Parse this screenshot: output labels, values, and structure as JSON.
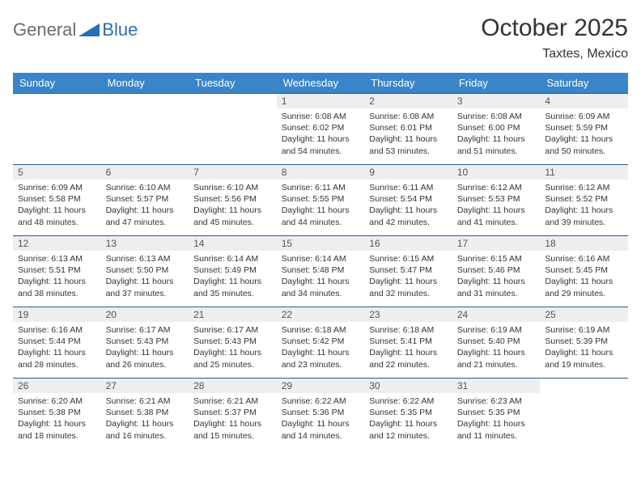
{
  "brand": {
    "general": "General",
    "blue": "Blue"
  },
  "title": "October 2025",
  "location": "Taxtes, Mexico",
  "colors": {
    "header_bg": "#3a85c9",
    "header_text": "#ffffff",
    "cell_border": "#2a5d8a",
    "daynum_bg": "#eceef0",
    "text": "#333333",
    "logo_blue": "#2a6db8",
    "logo_grey": "#6b6b6b"
  },
  "typography": {
    "title_fontsize": 30,
    "location_fontsize": 16,
    "weekday_fontsize": 13,
    "daynum_fontsize": 12,
    "body_fontsize": 10.5
  },
  "weekdays": [
    "Sunday",
    "Monday",
    "Tuesday",
    "Wednesday",
    "Thursday",
    "Friday",
    "Saturday"
  ],
  "weeks": [
    [
      {
        "n": "",
        "sr": "",
        "ss": "",
        "dl": ""
      },
      {
        "n": "",
        "sr": "",
        "ss": "",
        "dl": ""
      },
      {
        "n": "",
        "sr": "",
        "ss": "",
        "dl": ""
      },
      {
        "n": "1",
        "sr": "Sunrise: 6:08 AM",
        "ss": "Sunset: 6:02 PM",
        "dl": "Daylight: 11 hours and 54 minutes."
      },
      {
        "n": "2",
        "sr": "Sunrise: 6:08 AM",
        "ss": "Sunset: 6:01 PM",
        "dl": "Daylight: 11 hours and 53 minutes."
      },
      {
        "n": "3",
        "sr": "Sunrise: 6:08 AM",
        "ss": "Sunset: 6:00 PM",
        "dl": "Daylight: 11 hours and 51 minutes."
      },
      {
        "n": "4",
        "sr": "Sunrise: 6:09 AM",
        "ss": "Sunset: 5:59 PM",
        "dl": "Daylight: 11 hours and 50 minutes."
      }
    ],
    [
      {
        "n": "5",
        "sr": "Sunrise: 6:09 AM",
        "ss": "Sunset: 5:58 PM",
        "dl": "Daylight: 11 hours and 48 minutes."
      },
      {
        "n": "6",
        "sr": "Sunrise: 6:10 AM",
        "ss": "Sunset: 5:57 PM",
        "dl": "Daylight: 11 hours and 47 minutes."
      },
      {
        "n": "7",
        "sr": "Sunrise: 6:10 AM",
        "ss": "Sunset: 5:56 PM",
        "dl": "Daylight: 11 hours and 45 minutes."
      },
      {
        "n": "8",
        "sr": "Sunrise: 6:11 AM",
        "ss": "Sunset: 5:55 PM",
        "dl": "Daylight: 11 hours and 44 minutes."
      },
      {
        "n": "9",
        "sr": "Sunrise: 6:11 AM",
        "ss": "Sunset: 5:54 PM",
        "dl": "Daylight: 11 hours and 42 minutes."
      },
      {
        "n": "10",
        "sr": "Sunrise: 6:12 AM",
        "ss": "Sunset: 5:53 PM",
        "dl": "Daylight: 11 hours and 41 minutes."
      },
      {
        "n": "11",
        "sr": "Sunrise: 6:12 AM",
        "ss": "Sunset: 5:52 PM",
        "dl": "Daylight: 11 hours and 39 minutes."
      }
    ],
    [
      {
        "n": "12",
        "sr": "Sunrise: 6:13 AM",
        "ss": "Sunset: 5:51 PM",
        "dl": "Daylight: 11 hours and 38 minutes."
      },
      {
        "n": "13",
        "sr": "Sunrise: 6:13 AM",
        "ss": "Sunset: 5:50 PM",
        "dl": "Daylight: 11 hours and 37 minutes."
      },
      {
        "n": "14",
        "sr": "Sunrise: 6:14 AM",
        "ss": "Sunset: 5:49 PM",
        "dl": "Daylight: 11 hours and 35 minutes."
      },
      {
        "n": "15",
        "sr": "Sunrise: 6:14 AM",
        "ss": "Sunset: 5:48 PM",
        "dl": "Daylight: 11 hours and 34 minutes."
      },
      {
        "n": "16",
        "sr": "Sunrise: 6:15 AM",
        "ss": "Sunset: 5:47 PM",
        "dl": "Daylight: 11 hours and 32 minutes."
      },
      {
        "n": "17",
        "sr": "Sunrise: 6:15 AM",
        "ss": "Sunset: 5:46 PM",
        "dl": "Daylight: 11 hours and 31 minutes."
      },
      {
        "n": "18",
        "sr": "Sunrise: 6:16 AM",
        "ss": "Sunset: 5:45 PM",
        "dl": "Daylight: 11 hours and 29 minutes."
      }
    ],
    [
      {
        "n": "19",
        "sr": "Sunrise: 6:16 AM",
        "ss": "Sunset: 5:44 PM",
        "dl": "Daylight: 11 hours and 28 minutes."
      },
      {
        "n": "20",
        "sr": "Sunrise: 6:17 AM",
        "ss": "Sunset: 5:43 PM",
        "dl": "Daylight: 11 hours and 26 minutes."
      },
      {
        "n": "21",
        "sr": "Sunrise: 6:17 AM",
        "ss": "Sunset: 5:43 PM",
        "dl": "Daylight: 11 hours and 25 minutes."
      },
      {
        "n": "22",
        "sr": "Sunrise: 6:18 AM",
        "ss": "Sunset: 5:42 PM",
        "dl": "Daylight: 11 hours and 23 minutes."
      },
      {
        "n": "23",
        "sr": "Sunrise: 6:18 AM",
        "ss": "Sunset: 5:41 PM",
        "dl": "Daylight: 11 hours and 22 minutes."
      },
      {
        "n": "24",
        "sr": "Sunrise: 6:19 AM",
        "ss": "Sunset: 5:40 PM",
        "dl": "Daylight: 11 hours and 21 minutes."
      },
      {
        "n": "25",
        "sr": "Sunrise: 6:19 AM",
        "ss": "Sunset: 5:39 PM",
        "dl": "Daylight: 11 hours and 19 minutes."
      }
    ],
    [
      {
        "n": "26",
        "sr": "Sunrise: 6:20 AM",
        "ss": "Sunset: 5:38 PM",
        "dl": "Daylight: 11 hours and 18 minutes."
      },
      {
        "n": "27",
        "sr": "Sunrise: 6:21 AM",
        "ss": "Sunset: 5:38 PM",
        "dl": "Daylight: 11 hours and 16 minutes."
      },
      {
        "n": "28",
        "sr": "Sunrise: 6:21 AM",
        "ss": "Sunset: 5:37 PM",
        "dl": "Daylight: 11 hours and 15 minutes."
      },
      {
        "n": "29",
        "sr": "Sunrise: 6:22 AM",
        "ss": "Sunset: 5:36 PM",
        "dl": "Daylight: 11 hours and 14 minutes."
      },
      {
        "n": "30",
        "sr": "Sunrise: 6:22 AM",
        "ss": "Sunset: 5:35 PM",
        "dl": "Daylight: 11 hours and 12 minutes."
      },
      {
        "n": "31",
        "sr": "Sunrise: 6:23 AM",
        "ss": "Sunset: 5:35 PM",
        "dl": "Daylight: 11 hours and 11 minutes."
      },
      {
        "n": "",
        "sr": "",
        "ss": "",
        "dl": ""
      }
    ]
  ]
}
